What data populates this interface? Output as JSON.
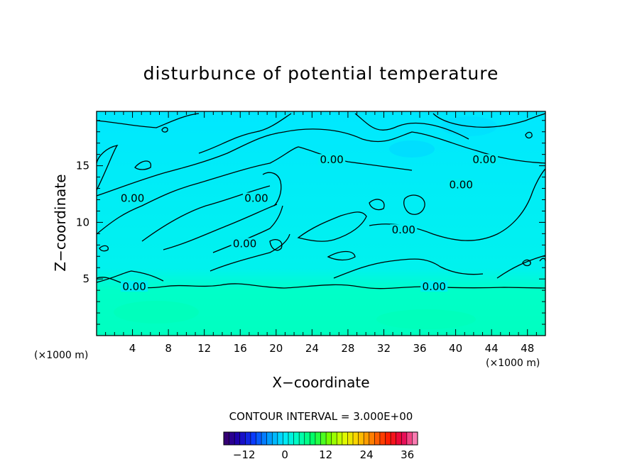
{
  "chart_data": {
    "type": "heatmap",
    "title": "disturbunce of potential temperature",
    "xlabel": "X−coordinate",
    "ylabel": "Z−coordinate",
    "x_unit": "(×1000 m)",
    "y_unit": "(×1000 m)",
    "xlim": [
      0,
      50
    ],
    "ylim": [
      0,
      19.8
    ],
    "x_ticks": [
      "4",
      "8",
      "12",
      "16",
      "20",
      "24",
      "28",
      "32",
      "36",
      "40",
      "44",
      "48"
    ],
    "y_ticks": [
      "5",
      "10",
      "15"
    ],
    "x_tick_values": [
      4,
      8,
      12,
      16,
      20,
      24,
      28,
      32,
      36,
      40,
      44,
      48
    ],
    "y_tick_values": [
      5,
      10,
      15
    ],
    "contour_labels": [
      {
        "text": "0.00",
        "x": 4.2,
        "y": 4.2
      },
      {
        "text": "0.00",
        "x": 4.0,
        "y": 12.0
      },
      {
        "text": "0.00",
        "x": 17.8,
        "y": 12.0
      },
      {
        "text": "0.00",
        "x": 16.5,
        "y": 8.0
      },
      {
        "text": "0.00",
        "x": 26.2,
        "y": 15.4
      },
      {
        "text": "0.00",
        "x": 43.2,
        "y": 15.4
      },
      {
        "text": "0.00",
        "x": 40.6,
        "y": 13.2
      },
      {
        "text": "0.00",
        "x": 34.2,
        "y": 9.2
      },
      {
        "text": "0.00",
        "x": 37.6,
        "y": 4.2
      }
    ],
    "contour_interval_label": "CONTOUR INTERVAL = 3.000E+00",
    "colorbar": {
      "min": -18,
      "max": 39,
      "ticks": [
        "−12",
        "0",
        "12",
        "24",
        "36"
      ],
      "tick_values": [
        -12,
        0,
        12,
        24,
        36
      ],
      "colors": [
        "#3a0066",
        "#1c00b4",
        "#0a3cff",
        "#0096ff",
        "#00e6ff",
        "#00ffbe",
        "#00ff64",
        "#6eff00",
        "#dcff00",
        "#ffcd00",
        "#ff7800",
        "#ff1e00",
        "#e6004b",
        "#ff96c8"
      ]
    },
    "field_color_low": "#00ffcc",
    "field_color_high": "#00e8ff"
  }
}
